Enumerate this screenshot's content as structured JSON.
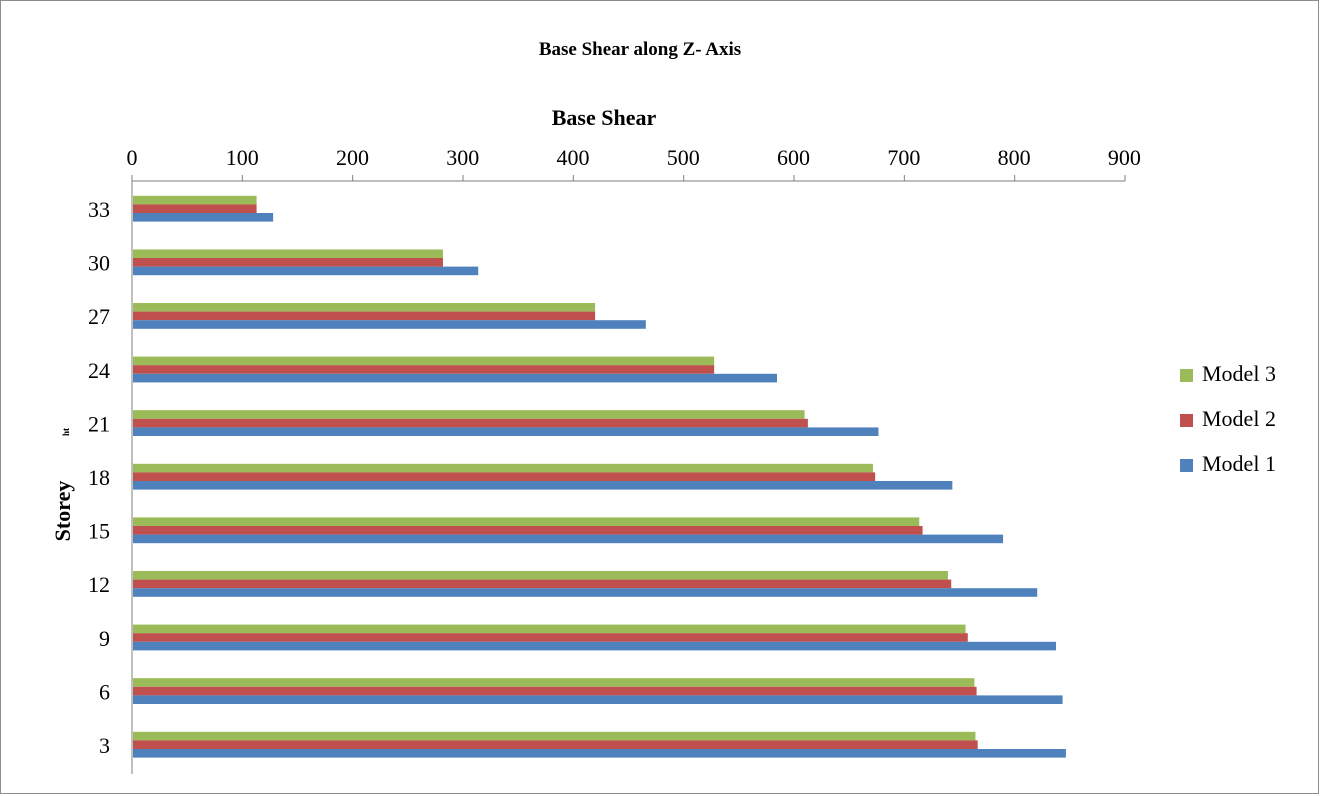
{
  "chart_data": {
    "type": "bar",
    "orientation": "horizontal",
    "title": "Base Shear along Z- Axis",
    "xlabel": "Base Shear",
    "ylabel": "Storey",
    "stray_label": "ht",
    "x_tick_labels": [
      "0",
      "100",
      "200",
      "300",
      "400",
      "500",
      "600",
      "700",
      "800",
      "900"
    ],
    "categories": [
      "33",
      "30",
      "27",
      "24",
      "21",
      "18",
      "15",
      "12",
      "9",
      "6",
      "3"
    ],
    "xlim": [
      0,
      900
    ],
    "grid": false,
    "legend_position": "right",
    "series": [
      {
        "name": "Model 1",
        "color": "#4f81bd",
        "values": [
          128,
          314,
          466,
          585,
          677,
          744,
          790,
          821,
          838,
          844,
          847
        ]
      },
      {
        "name": "Model 2",
        "color": "#c0504d",
        "values": [
          113,
          282,
          420,
          528,
          613,
          674,
          717,
          743,
          758,
          766,
          767
        ]
      },
      {
        "name": "Model 3",
        "color": "#9bbb59",
        "values": [
          113,
          282,
          420,
          528,
          610,
          672,
          714,
          740,
          756,
          764,
          765
        ]
      }
    ]
  }
}
